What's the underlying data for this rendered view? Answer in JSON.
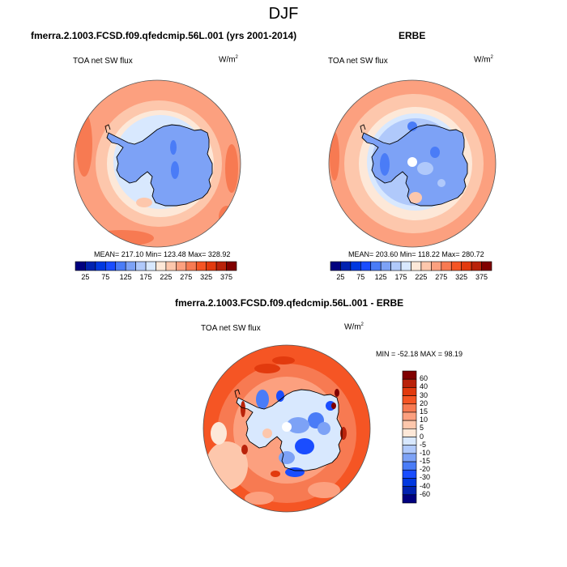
{
  "figure": {
    "title": "DJF"
  },
  "colors": {
    "abs_scale": [
      "#00007f",
      "#0022b0",
      "#0038e0",
      "#1a4dff",
      "#4a7cf7",
      "#7da2f6",
      "#b0c9fb",
      "#d8e8fe",
      "#fde8d8",
      "#fdc7ac",
      "#fca07f",
      "#f77a52",
      "#f55524",
      "#e23a0e",
      "#b9220a",
      "#800000"
    ],
    "diff_scale": [
      "#00007f",
      "#0022b0",
      "#0038e0",
      "#1a4dff",
      "#4a7cf7",
      "#7da2f6",
      "#b0c9fb",
      "#d8e8fe",
      "#fde8d8",
      "#fdc7ac",
      "#fca07f",
      "#f77a52",
      "#f55524",
      "#e23a0e",
      "#b9220a",
      "#800000"
    ],
    "coastline": "#000000"
  },
  "chart_data": [
    {
      "type": "heatmap",
      "projection": "south-polar-stereographic",
      "title": "fmerra.2.1003.FCSD.f09.qfedcmip.56L.001 (yrs 2001-2014)",
      "variable": "TOA net SW flux",
      "units": "W/m",
      "units_sup": "2",
      "stats_text": "MEAN= 217.10  Min= 123.48  Max= 328.92",
      "mean": 217.1,
      "min": 123.48,
      "max": 328.92,
      "colorbar": {
        "orientation": "horizontal",
        "levels": [
          25,
          50,
          75,
          100,
          125,
          150,
          175,
          200,
          225,
          250,
          275,
          300,
          325,
          350,
          375
        ],
        "tick_labels": [
          "25",
          "75",
          "125",
          "175",
          "225",
          "275",
          "325",
          "375"
        ]
      },
      "regions": [
        {
          "name": "antarctic-continent",
          "level_index": 5
        },
        {
          "name": "sea-ice-margin",
          "level_index": 7
        },
        {
          "name": "inner-ocean-ring",
          "level_index": 8
        },
        {
          "name": "mid-ocean-ring",
          "level_index": 9
        },
        {
          "name": "outer-ocean",
          "level_index": 10
        },
        {
          "name": "edge-maxima",
          "level_index": 12
        }
      ]
    },
    {
      "type": "heatmap",
      "projection": "south-polar-stereographic",
      "title": "ERBE",
      "variable": "TOA net SW flux",
      "units": "W/m",
      "units_sup": "2",
      "stats_text": "MEAN= 203.60  Min= 118.22  Max= 280.72",
      "mean": 203.6,
      "min": 118.22,
      "max": 280.72,
      "colorbar": {
        "orientation": "horizontal",
        "levels": [
          25,
          50,
          75,
          100,
          125,
          150,
          175,
          200,
          225,
          250,
          275,
          300,
          325,
          350,
          375
        ],
        "tick_labels": [
          "25",
          "75",
          "125",
          "175",
          "225",
          "275",
          "325",
          "375"
        ]
      },
      "regions": [
        {
          "name": "antarctic-continent",
          "level_index": 5
        },
        {
          "name": "coastal-band",
          "level_index": 6
        },
        {
          "name": "sea-ice-margin",
          "level_index": 7
        },
        {
          "name": "inner-ocean-ring",
          "level_index": 8
        },
        {
          "name": "mid-ocean-ring",
          "level_index": 9
        },
        {
          "name": "outer-ocean",
          "level_index": 10
        },
        {
          "name": "edge-maxima",
          "level_index": 11
        }
      ],
      "missing_pole": true
    },
    {
      "type": "heatmap",
      "projection": "south-polar-stereographic",
      "title": "fmerra.2.1003.FCSD.f09.qfedcmip.56L.001 - ERBE",
      "variable": "TOA net SW flux",
      "units": "W/m",
      "units_sup": "2",
      "stats_text": "MIN = -52.18 MAX =  98.19",
      "min": -52.18,
      "max": 98.19,
      "colorbar": {
        "orientation": "vertical",
        "levels": [
          60,
          40,
          30,
          20,
          15,
          10,
          5,
          0,
          -5,
          -10,
          -15,
          -20,
          -30,
          -40,
          -60
        ],
        "tick_labels": [
          "60",
          "40",
          "30",
          "20",
          "15",
          "10",
          "5",
          "0",
          "-5",
          "-10",
          "-15",
          "-20",
          "-30",
          "-40",
          "-60"
        ]
      },
      "regions": [
        {
          "name": "outer-ocean",
          "level_index": 12
        },
        {
          "name": "ocean-mixed",
          "level_index": 10
        },
        {
          "name": "continent-interior",
          "level_index": 6
        },
        {
          "name": "continent-minima",
          "level_index": 3
        },
        {
          "name": "coastal-maxima",
          "level_index": 14
        }
      ],
      "missing_pole": true
    }
  ]
}
